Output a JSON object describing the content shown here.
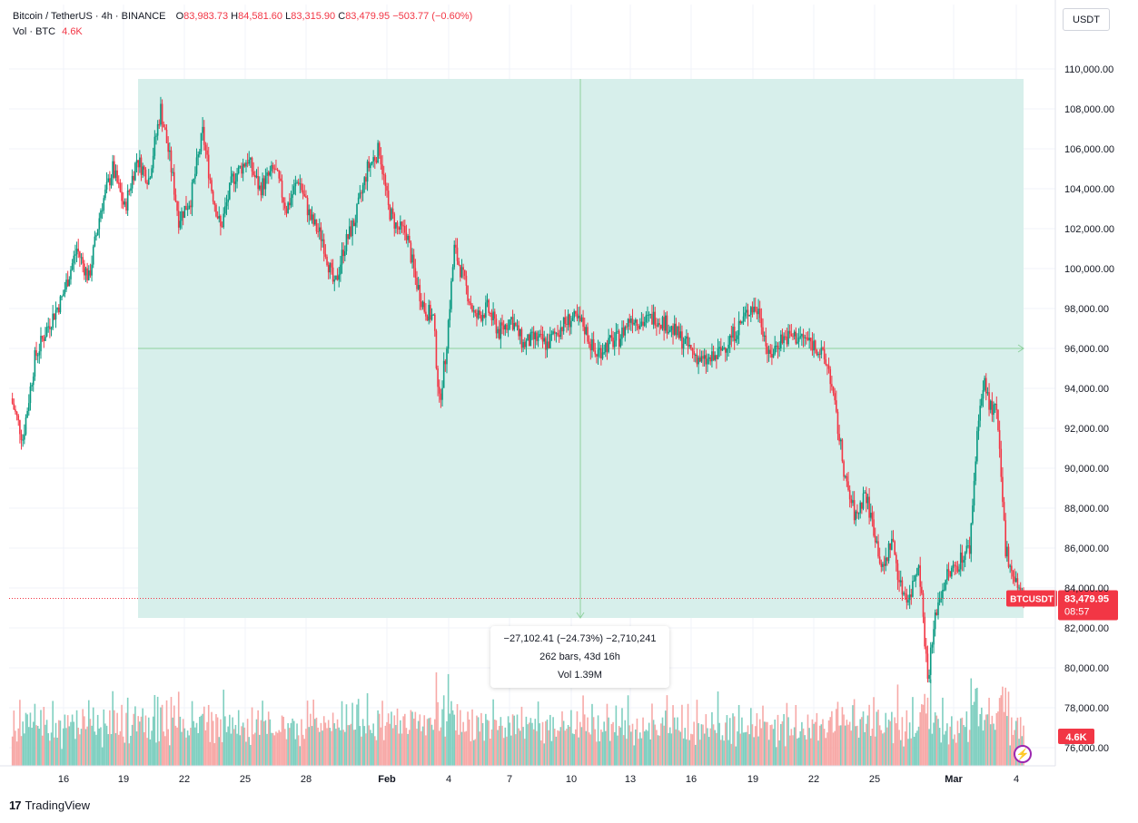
{
  "header": {
    "symbol": "Bitcoin / TetherUS · 4h · BINANCE",
    "open_label": "O",
    "open": "83,983.73",
    "high_label": "H",
    "high": "84,581.60",
    "low_label": "L",
    "low": "83,315.90",
    "close_label": "C",
    "close": "83,479.95",
    "change": "−503.77 (−0.60%)",
    "vol_label": "Vol · BTC",
    "vol_value": "4.6K"
  },
  "currency_button": "USDT",
  "measure_tooltip": {
    "line1": "−27,102.41 (−24.73%) −2,710,241",
    "line2": "262 bars, 43d 16h",
    "line3": "Vol 1.39M"
  },
  "price_badge": {
    "symbol": "BTCUSDT",
    "price": "83,479.95",
    "countdown": "08:57"
  },
  "volume_badge": "4.6K",
  "brand": "TradingView",
  "colors": {
    "up": "#089981",
    "down": "#f23645",
    "up_volume": "#7fcfc0",
    "down_volume": "#f7a9a7",
    "measure_fill": "#d7efeb",
    "measure_line": "#8fd19e"
  },
  "chart_data": {
    "type": "candlestick",
    "title": "Bitcoin / TetherUS · 4h · BINANCE",
    "y_ticks": [
      "76,000.00",
      "78,000.00",
      "80,000.00",
      "82,000.00",
      "84,000.00",
      "86,000.00",
      "88,000.00",
      "90,000.00",
      "92,000.00",
      "94,000.00",
      "96,000.00",
      "98,000.00",
      "100,000.00",
      "102,000.00",
      "104,000.00",
      "106,000.00",
      "108,000.00",
      "110,000.00"
    ],
    "y_tick_values": [
      76000,
      78000,
      80000,
      82000,
      84000,
      86000,
      88000,
      90000,
      92000,
      94000,
      96000,
      98000,
      100000,
      102000,
      104000,
      106000,
      108000,
      110000
    ],
    "x_ticks": [
      "16",
      "19",
      "22",
      "25",
      "28",
      "Feb",
      "4",
      "7",
      "10",
      "13",
      "16",
      "19",
      "22",
      "25",
      "Mar",
      "4"
    ],
    "ylim": [
      75300,
      112000
    ],
    "last_price": 83479.95,
    "measure": {
      "from_price": 109500,
      "to_price": 82500,
      "mid_price": 96000
    },
    "path_points": [
      [
        0,
        93500
      ],
      [
        8,
        91500
      ],
      [
        16,
        95500
      ],
      [
        24,
        97000
      ],
      [
        34,
        98500
      ],
      [
        44,
        101000
      ],
      [
        52,
        99500
      ],
      [
        60,
        103000
      ],
      [
        68,
        105000
      ],
      [
        76,
        103000
      ],
      [
        84,
        105500
      ],
      [
        92,
        104500
      ],
      [
        100,
        108000
      ],
      [
        106,
        105500
      ],
      [
        112,
        102500
      ],
      [
        120,
        103500
      ],
      [
        128,
        106800
      ],
      [
        134,
        104000
      ],
      [
        140,
        102000
      ],
      [
        148,
        104500
      ],
      [
        158,
        105500
      ],
      [
        166,
        104000
      ],
      [
        176,
        105000
      ],
      [
        184,
        103000
      ],
      [
        192,
        104500
      ],
      [
        200,
        102500
      ],
      [
        208,
        101500
      ],
      [
        216,
        99000
      ],
      [
        222,
        101000
      ],
      [
        230,
        102500
      ],
      [
        238,
        105000
      ],
      [
        246,
        106000
      ],
      [
        252,
        103000
      ],
      [
        258,
        102000
      ],
      [
        264,
        101800
      ],
      [
        270,
        99500
      ],
      [
        276,
        98000
      ],
      [
        282,
        97500
      ],
      [
        286,
        93300
      ],
      [
        290,
        95500
      ],
      [
        296,
        101000
      ],
      [
        302,
        99500
      ],
      [
        310,
        97500
      ],
      [
        318,
        98000
      ],
      [
        326,
        96800
      ],
      [
        334,
        97500
      ],
      [
        342,
        96200
      ],
      [
        350,
        96500
      ],
      [
        358,
        96200
      ],
      [
        366,
        97000
      ],
      [
        374,
        97500
      ],
      [
        382,
        97200
      ],
      [
        390,
        95700
      ],
      [
        398,
        96200
      ],
      [
        406,
        96500
      ],
      [
        414,
        97600
      ],
      [
        422,
        97300
      ],
      [
        430,
        97600
      ],
      [
        438,
        97200
      ],
      [
        446,
        96600
      ],
      [
        454,
        95900
      ],
      [
        462,
        95300
      ],
      [
        470,
        95500
      ],
      [
        478,
        96300
      ],
      [
        486,
        97100
      ],
      [
        494,
        98100
      ],
      [
        500,
        97800
      ],
      [
        506,
        95500
      ],
      [
        514,
        96500
      ],
      [
        522,
        96600
      ],
      [
        530,
        96500
      ],
      [
        538,
        96100
      ],
      [
        546,
        95000
      ],
      [
        552,
        92000
      ],
      [
        558,
        89000
      ],
      [
        564,
        87500
      ],
      [
        570,
        88800
      ],
      [
        576,
        87000
      ],
      [
        582,
        84800
      ],
      [
        588,
        86500
      ],
      [
        594,
        84000
      ],
      [
        600,
        83500
      ],
      [
        606,
        85500
      ],
      [
        612,
        79500
      ],
      [
        618,
        83000
      ],
      [
        624,
        84500
      ],
      [
        630,
        85000
      ],
      [
        636,
        85700
      ],
      [
        640,
        86000
      ],
      [
        646,
        92800
      ],
      [
        650,
        94200
      ],
      [
        654,
        93000
      ],
      [
        658,
        92800
      ],
      [
        664,
        86000
      ],
      [
        670,
        84500
      ],
      [
        676,
        83480
      ]
    ],
    "volume_pattern": [
      0.35,
      0.2,
      0.5,
      0.25,
      0.15,
      0.3,
      0.45,
      0.2,
      0.6,
      0.25,
      0.18,
      0.4,
      0.3,
      0.22,
      0.5,
      0.28,
      0.15,
      0.35,
      0.55,
      0.2,
      0.3,
      0.25,
      0.7,
      0.4,
      0.2,
      0.33,
      0.18,
      0.27,
      0.45,
      0.22
    ]
  }
}
